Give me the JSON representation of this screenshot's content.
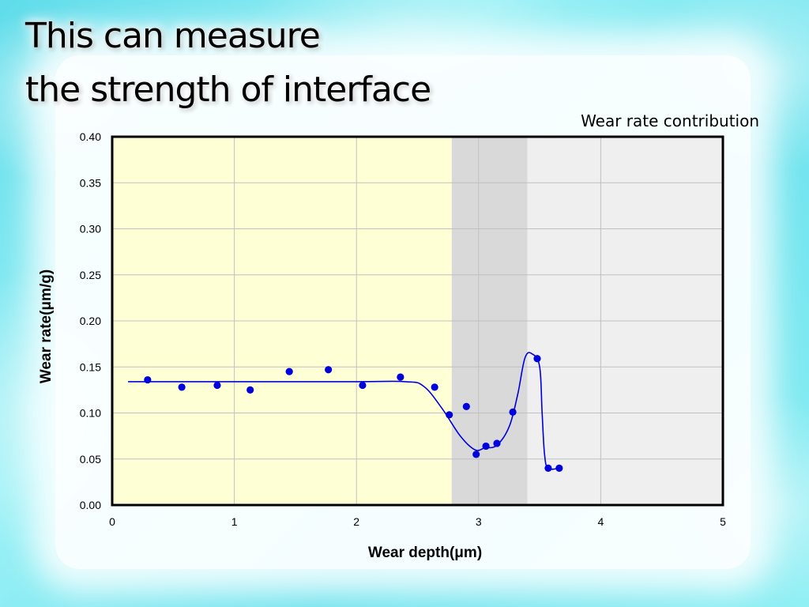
{
  "slide": {
    "title_line1": "This can measure",
    "title_line2": "the strength of interface"
  },
  "colors": {
    "series": "#0000dd",
    "region1": "#ffffd6",
    "region2": "#d9d9d9",
    "region3": "#efefef",
    "grid": "#c0c0c0"
  },
  "chart_data": {
    "type": "scatter",
    "title": "",
    "annotation": "Wear rate contribution",
    "xlabel": "Wear depth(μm)",
    "ylabel": "Wear rate(μm/g)",
    "xlim": [
      0,
      5
    ],
    "ylim": [
      0,
      0.4
    ],
    "x_ticks": [
      "0",
      "1",
      "2",
      "3",
      "4",
      "5"
    ],
    "y_ticks": [
      "0.00",
      "0.05",
      "0.10",
      "0.15",
      "0.20",
      "0.25",
      "0.30",
      "0.35",
      "0.40"
    ],
    "grid": true,
    "background_regions": [
      {
        "x0": 0,
        "x1": 2.78,
        "color": "#ffffd6"
      },
      {
        "x0": 2.78,
        "x1": 3.4,
        "color": "#d9d9d9"
      },
      {
        "x0": 3.4,
        "x1": 5,
        "color": "#efefef"
      }
    ],
    "series": [
      {
        "type": "scatter",
        "x": [
          0.29,
          0.57,
          0.86,
          1.13,
          1.45,
          1.77,
          2.05,
          2.36,
          2.64,
          2.76,
          2.9,
          2.98,
          3.06,
          3.15,
          3.28,
          3.48,
          3.57,
          3.66
        ],
        "y": [
          0.136,
          0.128,
          0.13,
          0.125,
          0.145,
          0.147,
          0.13,
          0.139,
          0.128,
          0.098,
          0.107,
          0.055,
          0.064,
          0.067,
          0.101,
          0.159,
          0.04,
          0.04
        ]
      },
      {
        "type": "line",
        "x": [
          0.13,
          1.0,
          2.0,
          2.4,
          2.55,
          2.7,
          2.85,
          2.97,
          3.05,
          3.15,
          3.25,
          3.32,
          3.38,
          3.44,
          3.5,
          3.52,
          3.54,
          3.57,
          3.66
        ],
        "y": [
          0.134,
          0.134,
          0.134,
          0.134,
          0.129,
          0.105,
          0.075,
          0.06,
          0.062,
          0.065,
          0.085,
          0.12,
          0.16,
          0.164,
          0.15,
          0.1,
          0.055,
          0.04,
          0.04
        ]
      }
    ]
  }
}
